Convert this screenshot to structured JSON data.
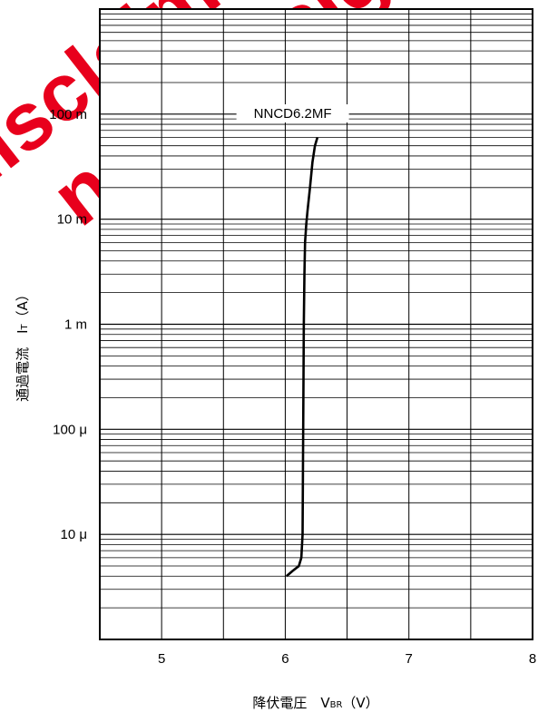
{
  "watermark": {
    "line1": "disclaimer",
    "line2": "new design",
    "color": "#e8001c"
  },
  "chart_data": {
    "type": "line",
    "series": [
      {
        "name": "NNCD6.2MF",
        "x": [
          6.01,
          6.06,
          6.11,
          6.13,
          6.14,
          6.145,
          6.15,
          6.155,
          6.16,
          6.17,
          6.18,
          6.2,
          6.22,
          6.24,
          6.26
        ],
        "y": [
          4e-06,
          4.5e-06,
          5e-06,
          6e-06,
          1e-05,
          0.0001,
          0.001,
          0.003,
          0.006,
          0.009,
          0.012,
          0.02,
          0.035,
          0.05,
          0.06
        ]
      }
    ],
    "xlim": [
      4.5,
      8
    ],
    "xticks": [
      5,
      6,
      7,
      8
    ],
    "xtick_labels": [
      "5",
      "6",
      "7",
      "8"
    ],
    "yscale": "log",
    "ylim": [
      1e-06,
      1
    ],
    "yticks": [
      1e-05,
      0.0001,
      0.001,
      0.01,
      0.1
    ],
    "ytick_labels": [
      "10 μ",
      "100 μ",
      "1 m",
      "10 m",
      "100 m"
    ],
    "xlabel": "降伏電圧　V",
    "xlabel_sub": "BR",
    "xlabel_unit": "（V）",
    "ylabel": "通過電流　I",
    "ylabel_sub": "T",
    "ylabel_unit": "（A）",
    "grid": true,
    "line_color": "#000000"
  }
}
